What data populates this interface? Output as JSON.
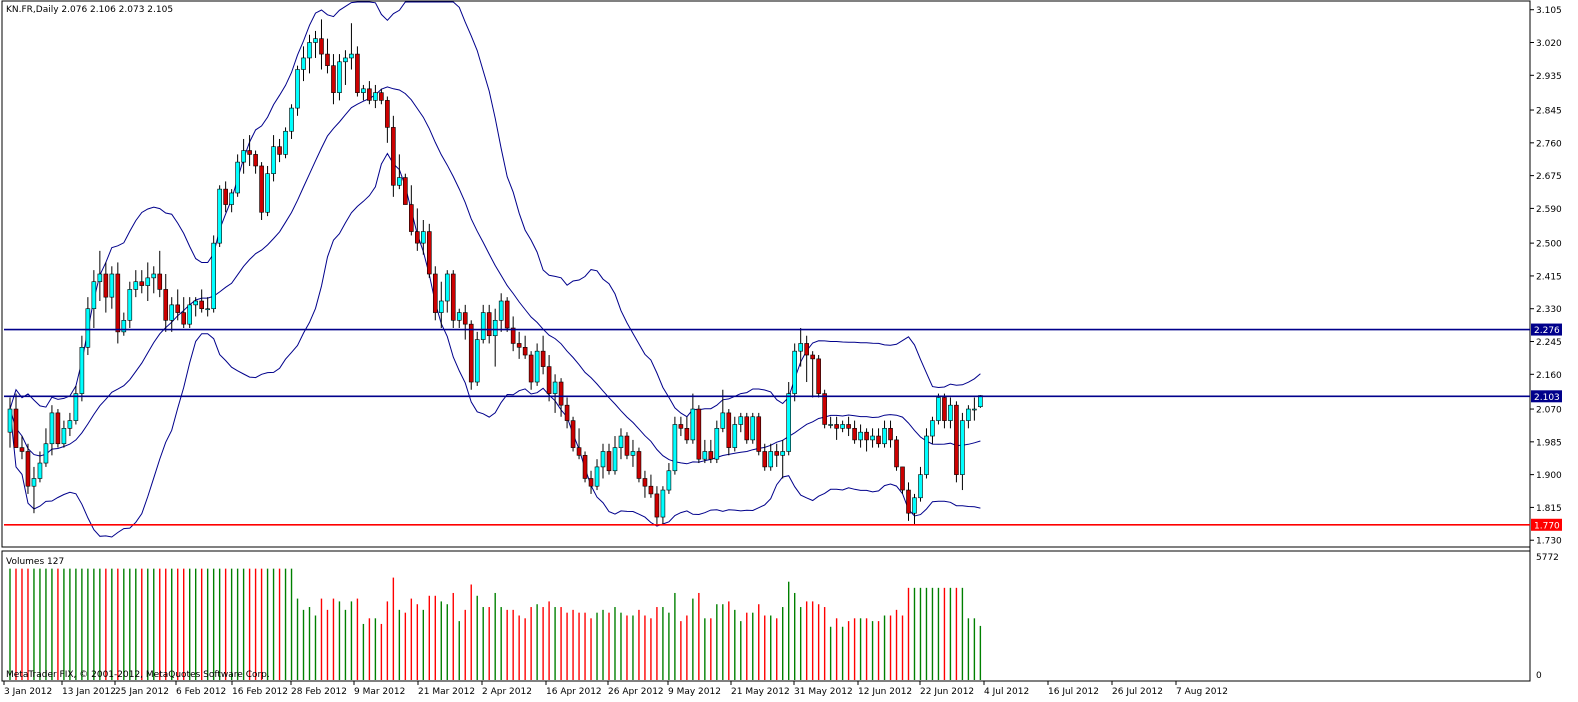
{
  "header": {
    "symbol_line": "KN.FR,Daily  2.076 2.106 2.073 2.105",
    "volume_title": "Volumes 127",
    "copyright": "MetaTrader FIX, © 2001-2012, MetaQuotes Software Corp."
  },
  "colors": {
    "bull": "#00FFFF",
    "bear": "#CC0000",
    "band": "#00008B",
    "level_blue": "#00008B",
    "level_red": "#FF0000",
    "vol_up": "#008000",
    "vol_down": "#FF0000"
  },
  "chart_data": [
    {
      "type": "candlestick",
      "symbol": "KN.FR",
      "timeframe": "Daily",
      "ohlc_last": {
        "open": 2.076,
        "high": 2.106,
        "low": 2.073,
        "close": 2.105
      },
      "ylim": [
        1.715,
        3.125
      ],
      "yticks": [
        "3.105",
        "3.020",
        "2.935",
        "2.845",
        "2.760",
        "2.675",
        "2.590",
        "2.500",
        "2.415",
        "2.330",
        "2.245",
        "2.160",
        "2.070",
        "1.985",
        "1.900",
        "1.815",
        "1.730"
      ],
      "xticks": [
        "3 Jan 2012",
        "13 Jan 2012",
        "25 Jan 2012",
        "6 Feb 2012",
        "16 Feb 2012",
        "28 Feb 2012",
        "9 Mar 2012",
        "21 Mar 2012",
        "2 Apr 2012",
        "16 Apr 2012",
        "26 Apr 2012",
        "9 May 2012",
        "21 May 2012",
        "31 May 2012",
        "12 Jun 2012",
        "22 Jun 2012",
        "4 Jul 2012",
        "16 Jul 2012",
        "26 Jul 2012",
        "7 Aug 2012"
      ],
      "levels": [
        {
          "value": 2.276,
          "label": "2.276",
          "color": "#00008B"
        },
        {
          "value": 2.103,
          "label": "2.103",
          "color": "#00008B"
        },
        {
          "value": 1.77,
          "label": "1.770",
          "color": "#FF0000"
        }
      ],
      "indicator": "Bollinger Bands",
      "candles": [
        [
          2.01,
          2.1,
          1.97,
          2.07
        ],
        [
          2.07,
          2.11,
          1.98,
          1.97
        ],
        [
          1.97,
          2.0,
          1.94,
          1.96
        ],
        [
          1.96,
          1.98,
          1.85,
          1.87
        ],
        [
          1.87,
          1.92,
          1.8,
          1.89
        ],
        [
          1.89,
          1.96,
          1.88,
          1.93
        ],
        [
          1.93,
          2.02,
          1.92,
          1.98
        ],
        [
          1.98,
          2.08,
          1.95,
          2.06
        ],
        [
          2.06,
          2.07,
          1.97,
          1.98
        ],
        [
          1.98,
          2.04,
          1.97,
          2.02
        ],
        [
          2.02,
          2.06,
          2.0,
          2.04
        ],
        [
          2.04,
          2.13,
          2.03,
          2.11
        ],
        [
          2.11,
          2.26,
          2.09,
          2.23
        ],
        [
          2.23,
          2.36,
          2.21,
          2.33
        ],
        [
          2.33,
          2.43,
          2.28,
          2.4
        ],
        [
          2.4,
          2.48,
          2.35,
          2.42
        ],
        [
          2.42,
          2.45,
          2.32,
          2.36
        ],
        [
          2.36,
          2.44,
          2.33,
          2.42
        ],
        [
          2.42,
          2.45,
          2.24,
          2.27
        ],
        [
          2.27,
          2.32,
          2.26,
          2.3
        ],
        [
          2.3,
          2.4,
          2.28,
          2.38
        ],
        [
          2.38,
          2.43,
          2.36,
          2.4
        ],
        [
          2.4,
          2.43,
          2.37,
          2.39
        ],
        [
          2.39,
          2.45,
          2.35,
          2.41
        ],
        [
          2.41,
          2.44,
          2.37,
          2.42
        ],
        [
          2.42,
          2.48,
          2.36,
          2.38
        ],
        [
          2.38,
          2.42,
          2.27,
          2.3
        ],
        [
          2.3,
          2.36,
          2.27,
          2.34
        ],
        [
          2.34,
          2.38,
          2.3,
          2.32
        ],
        [
          2.32,
          2.36,
          2.28,
          2.29
        ],
        [
          2.29,
          2.36,
          2.28,
          2.34
        ],
        [
          2.34,
          2.36,
          2.31,
          2.35
        ],
        [
          2.35,
          2.38,
          2.32,
          2.33
        ],
        [
          2.33,
          2.36,
          2.31,
          2.33
        ],
        [
          2.33,
          2.52,
          2.32,
          2.5
        ],
        [
          2.5,
          2.65,
          2.49,
          2.64
        ],
        [
          2.64,
          2.66,
          2.58,
          2.6
        ],
        [
          2.6,
          2.64,
          2.58,
          2.63
        ],
        [
          2.63,
          2.73,
          2.62,
          2.71
        ],
        [
          2.71,
          2.77,
          2.68,
          2.74
        ],
        [
          2.74,
          2.78,
          2.7,
          2.73
        ],
        [
          2.73,
          2.74,
          2.68,
          2.7
        ],
        [
          2.7,
          2.71,
          2.56,
          2.58
        ],
        [
          2.58,
          2.7,
          2.57,
          2.68
        ],
        [
          2.68,
          2.78,
          2.66,
          2.75
        ],
        [
          2.75,
          2.77,
          2.71,
          2.73
        ],
        [
          2.73,
          2.8,
          2.72,
          2.79
        ],
        [
          2.79,
          2.86,
          2.77,
          2.85
        ],
        [
          2.85,
          2.96,
          2.83,
          2.95
        ],
        [
          2.95,
          3.01,
          2.92,
          2.98
        ],
        [
          2.98,
          3.04,
          2.94,
          3.02
        ],
        [
          3.02,
          3.05,
          2.98,
          3.03
        ],
        [
          3.03,
          3.08,
          2.95,
          2.99
        ],
        [
          2.99,
          3.03,
          2.94,
          2.96
        ],
        [
          2.96,
          2.99,
          2.86,
          2.89
        ],
        [
          2.89,
          2.99,
          2.87,
          2.97
        ],
        [
          2.97,
          3.0,
          2.91,
          2.98
        ],
        [
          2.98,
          3.07,
          2.95,
          2.99
        ],
        [
          2.99,
          3.01,
          2.88,
          2.89
        ],
        [
          2.89,
          2.91,
          2.87,
          2.9
        ],
        [
          2.9,
          2.92,
          2.86,
          2.87
        ],
        [
          2.87,
          2.91,
          2.85,
          2.89
        ],
        [
          2.89,
          2.9,
          2.86,
          2.87
        ],
        [
          2.87,
          2.88,
          2.76,
          2.8
        ],
        [
          2.8,
          2.83,
          2.62,
          2.65
        ],
        [
          2.65,
          2.73,
          2.64,
          2.67
        ],
        [
          2.67,
          2.68,
          2.6,
          2.6
        ],
        [
          2.6,
          2.65,
          2.52,
          2.53
        ],
        [
          2.53,
          2.59,
          2.48,
          2.5
        ],
        [
          2.5,
          2.56,
          2.47,
          2.53
        ],
        [
          2.53,
          2.55,
          2.41,
          2.42
        ],
        [
          2.42,
          2.44,
          2.3,
          2.32
        ],
        [
          2.32,
          2.4,
          2.28,
          2.35
        ],
        [
          2.35,
          2.43,
          2.32,
          2.42
        ],
        [
          2.42,
          2.43,
          2.28,
          2.3
        ],
        [
          2.3,
          2.33,
          2.28,
          2.32
        ],
        [
          2.32,
          2.34,
          2.25,
          2.29
        ],
        [
          2.29,
          2.3,
          2.12,
          2.14
        ],
        [
          2.14,
          2.27,
          2.13,
          2.25
        ],
        [
          2.25,
          2.34,
          2.24,
          2.32
        ],
        [
          2.32,
          2.34,
          2.24,
          2.26
        ],
        [
          2.26,
          2.33,
          2.18,
          2.3
        ],
        [
          2.3,
          2.37,
          2.27,
          2.35
        ],
        [
          2.35,
          2.36,
          2.27,
          2.28
        ],
        [
          2.28,
          2.31,
          2.22,
          2.24
        ],
        [
          2.24,
          2.27,
          2.2,
          2.23
        ],
        [
          2.23,
          2.26,
          2.2,
          2.21
        ],
        [
          2.21,
          2.22,
          2.12,
          2.14
        ],
        [
          2.14,
          2.24,
          2.13,
          2.22
        ],
        [
          2.22,
          2.26,
          2.16,
          2.18
        ],
        [
          2.18,
          2.21,
          2.09,
          2.11
        ],
        [
          2.11,
          2.16,
          2.06,
          2.14
        ],
        [
          2.14,
          2.15,
          2.05,
          2.08
        ],
        [
          2.08,
          2.1,
          2.02,
          2.04
        ],
        [
          2.04,
          2.05,
          1.96,
          1.97
        ],
        [
          1.97,
          2.02,
          1.94,
          1.95
        ],
        [
          1.95,
          1.96,
          1.88,
          1.89
        ],
        [
          1.89,
          1.91,
          1.85,
          1.87
        ],
        [
          1.87,
          1.94,
          1.86,
          1.92
        ],
        [
          1.92,
          1.98,
          1.89,
          1.96
        ],
        [
          1.96,
          1.98,
          1.9,
          1.91
        ],
        [
          1.91,
          2.0,
          1.9,
          1.97
        ],
        [
          1.97,
          2.02,
          1.94,
          2.0
        ],
        [
          2.0,
          2.01,
          1.94,
          1.95
        ],
        [
          1.95,
          1.99,
          1.92,
          1.96
        ],
        [
          1.96,
          1.97,
          1.88,
          1.89
        ],
        [
          1.89,
          1.91,
          1.84,
          1.87
        ],
        [
          1.87,
          1.9,
          1.84,
          1.85
        ],
        [
          1.85,
          1.87,
          1.77,
          1.79
        ],
        [
          1.79,
          1.87,
          1.77,
          1.86
        ],
        [
          1.86,
          1.93,
          1.85,
          1.91
        ],
        [
          1.91,
          2.05,
          1.9,
          2.03
        ],
        [
          2.03,
          2.05,
          2.0,
          2.02
        ],
        [
          2.02,
          2.05,
          1.98,
          1.99
        ],
        [
          1.99,
          2.11,
          1.98,
          2.07
        ],
        [
          2.07,
          2.08,
          1.93,
          1.94
        ],
        [
          1.94,
          1.99,
          1.93,
          1.96
        ],
        [
          1.96,
          1.99,
          1.93,
          1.94
        ],
        [
          1.94,
          2.04,
          1.93,
          2.02
        ],
        [
          2.02,
          2.12,
          2.01,
          2.06
        ],
        [
          2.06,
          2.07,
          1.95,
          1.97
        ],
        [
          1.97,
          2.05,
          1.96,
          2.03
        ],
        [
          2.03,
          2.06,
          2.01,
          2.05
        ],
        [
          2.05,
          2.06,
          1.98,
          1.99
        ],
        [
          1.99,
          2.06,
          1.98,
          2.05
        ],
        [
          2.05,
          2.06,
          1.95,
          1.96
        ],
        [
          1.96,
          1.98,
          1.91,
          1.92
        ],
        [
          1.92,
          1.98,
          1.91,
          1.96
        ],
        [
          1.96,
          1.98,
          1.92,
          1.95
        ],
        [
          1.95,
          1.99,
          1.89,
          1.96
        ],
        [
          1.96,
          2.14,
          1.95,
          2.11
        ],
        [
          2.11,
          2.24,
          2.09,
          2.22
        ],
        [
          2.22,
          2.28,
          2.18,
          2.24
        ],
        [
          2.24,
          2.26,
          2.14,
          2.21
        ],
        [
          2.21,
          2.22,
          2.1,
          2.2
        ],
        [
          2.2,
          2.21,
          2.1,
          2.11
        ],
        [
          2.11,
          2.12,
          2.02,
          2.03
        ],
        [
          2.03,
          2.05,
          2.02,
          2.03
        ],
        [
          2.03,
          2.05,
          1.99,
          2.02
        ],
        [
          2.02,
          2.04,
          2.01,
          2.03
        ],
        [
          2.03,
          2.05,
          2.0,
          2.02
        ],
        [
          2.02,
          2.04,
          1.98,
          1.99
        ],
        [
          1.99,
          2.03,
          1.97,
          2.01
        ],
        [
          2.01,
          2.02,
          1.96,
          1.99
        ],
        [
          1.99,
          2.02,
          1.97,
          2.0
        ],
        [
          2.0,
          2.02,
          1.97,
          1.98
        ],
        [
          1.98,
          2.04,
          1.97,
          2.02
        ],
        [
          2.02,
          2.04,
          1.97,
          1.99
        ],
        [
          1.99,
          2.0,
          1.91,
          1.92
        ],
        [
          1.92,
          1.92,
          1.85,
          1.86
        ],
        [
          1.86,
          1.88,
          1.78,
          1.8
        ],
        [
          1.8,
          1.85,
          1.77,
          1.84
        ],
        [
          1.84,
          1.92,
          1.83,
          1.9
        ],
        [
          1.9,
          2.02,
          1.89,
          2.0
        ],
        [
          2.0,
          2.05,
          1.98,
          2.04
        ],
        [
          2.04,
          2.11,
          2.03,
          2.1
        ],
        [
          2.1,
          2.11,
          2.02,
          2.04
        ],
        [
          2.04,
          2.1,
          2.02,
          2.08
        ],
        [
          2.08,
          2.09,
          1.88,
          1.9
        ],
        [
          1.9,
          2.06,
          1.86,
          2.04
        ],
        [
          2.04,
          2.08,
          2.02,
          2.07
        ],
        [
          2.07,
          2.1,
          2.04,
          2.07
        ],
        [
          2.076,
          2.106,
          2.073,
          2.105
        ]
      ]
    },
    {
      "type": "bar",
      "title": "Volumes 127",
      "ylim": [
        0,
        5772
      ],
      "yticks": [
        "5772",
        "0"
      ]
    }
  ]
}
